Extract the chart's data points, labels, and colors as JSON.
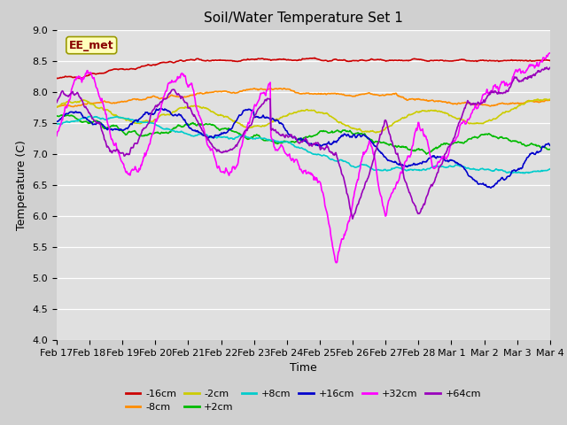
{
  "title": "Soil/Water Temperature Set 1",
  "ylabel": "Temperature (C)",
  "xlabel": "Time",
  "annotation": "EE_met",
  "ylim": [
    4.0,
    9.0
  ],
  "yticks": [
    4.0,
    4.5,
    5.0,
    5.5,
    6.0,
    6.5,
    7.0,
    7.5,
    8.0,
    8.5,
    9.0
  ],
  "xtick_labels": [
    "Feb 17",
    "Feb 18",
    "Feb 19",
    "Feb 20",
    "Feb 21",
    "Feb 22",
    "Feb 23",
    "Feb 24",
    "Feb 25",
    "Feb 26",
    "Feb 27",
    "Feb 28",
    "Mar 1",
    "Mar 2",
    "Mar 3",
    "Mar 4"
  ],
  "series": {
    "-16cm": {
      "color": "#cc0000",
      "lw": 1.2
    },
    "-8cm": {
      "color": "#ff8c00",
      "lw": 1.2
    },
    "-2cm": {
      "color": "#cccc00",
      "lw": 1.2
    },
    "+2cm": {
      "color": "#00bb00",
      "lw": 1.2
    },
    "+8cm": {
      "color": "#00cccc",
      "lw": 1.2
    },
    "+16cm": {
      "color": "#0000cc",
      "lw": 1.2
    },
    "+32cm": {
      "color": "#ff00ff",
      "lw": 1.2
    },
    "+64cm": {
      "color": "#9900bb",
      "lw": 1.2
    }
  },
  "legend_order": [
    "-16cm",
    "-8cm",
    "-2cm",
    "+2cm",
    "+8cm",
    "+16cm",
    "+32cm",
    "+64cm"
  ],
  "fig_bg": "#d0d0d0",
  "plot_bg": "#e0e0e0",
  "title_fontsize": 11,
  "axis_fontsize": 9,
  "tick_fontsize": 8
}
